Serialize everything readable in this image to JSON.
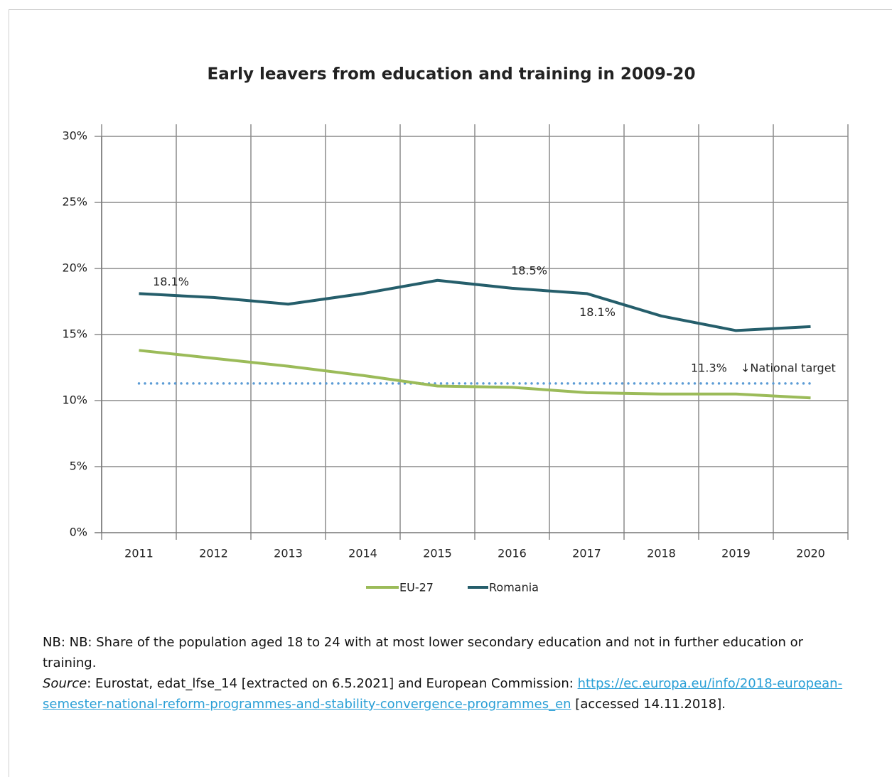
{
  "chart_data": {
    "type": "line",
    "title": "Early leavers from education and training in 2009-20",
    "categories": [
      "2011",
      "2012",
      "2013",
      "2014",
      "2015",
      "2016",
      "2017",
      "2018",
      "2019",
      "2020"
    ],
    "series": [
      {
        "name": "EU-27",
        "color": "#9bbb59",
        "values": [
          13.8,
          13.2,
          12.6,
          11.9,
          11.1,
          11.0,
          10.6,
          10.5,
          10.5,
          10.2
        ]
      },
      {
        "name": "Romania",
        "color": "#255e6b",
        "values": [
          18.1,
          17.8,
          17.3,
          18.1,
          19.1,
          18.5,
          18.1,
          16.4,
          15.3,
          15.6
        ],
        "value_labels": [
          "18.1%",
          null,
          null,
          null,
          null,
          "18.5%",
          "18.1%",
          null,
          null,
          null
        ]
      }
    ],
    "target": {
      "value": 11.3,
      "label": "11.3%",
      "text": "↓National target",
      "color": "#5b9bd5"
    },
    "ylim": [
      0,
      30
    ],
    "yticks": [
      {
        "value": 0,
        "label": "0%"
      },
      {
        "value": 5,
        "label": "5%"
      },
      {
        "value": 10,
        "label": "10%"
      },
      {
        "value": 15,
        "label": "15%"
      },
      {
        "value": 20,
        "label": "20%"
      },
      {
        "value": 25,
        "label": "25%"
      },
      {
        "value": 30,
        "label": "30%"
      }
    ],
    "grid": true,
    "legend": "bottom"
  },
  "note": {
    "text": "NB: NB: Share of the population aged 18 to 24 with at most lower secondary education and not in further education or training.",
    "source_label": "Source",
    "source_text": ": Eurostat, edat_lfse_14 [extracted on 6.5.2021] and European Commission: ",
    "link": "https://ec.europa.eu/info/2018-european-semester-national-reform-programmes-and-stability-convergence-programmes_en",
    "accessed": " [accessed 14.11.2018]."
  }
}
